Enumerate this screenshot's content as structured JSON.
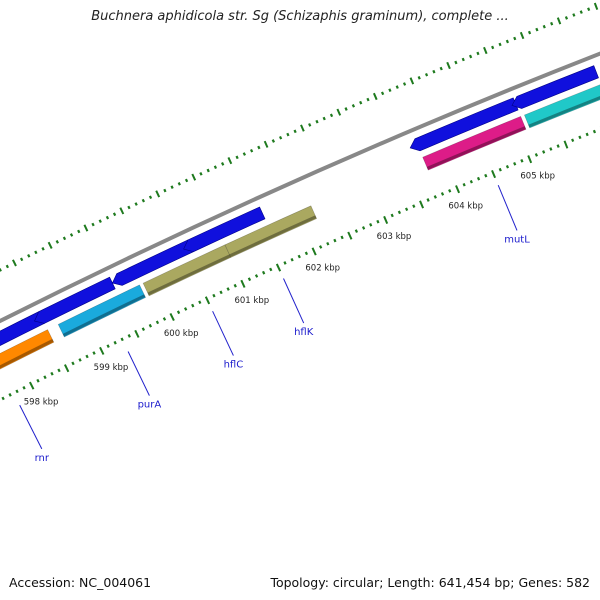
{
  "map": {
    "title": "Buchnera aphidicola str. Sg (Schizaphis graminum), complete ...",
    "accession_label": "Accession:",
    "accession": "NC_004061",
    "topology_label": "Topology:",
    "topology": "circular",
    "length_label": "Length:",
    "length": "641,454 bp",
    "genes_label": "Genes:",
    "genes": "582"
  },
  "colors": {
    "backbone": "#888888",
    "tick": "#1e7a1e",
    "forward_gene": "#1010dd",
    "label_line": "#2222cc"
  },
  "position_labels": [
    {
      "kbp": 598,
      "text": "598 kbp"
    },
    {
      "kbp": 599,
      "text": "599 kbp"
    },
    {
      "kbp": 600,
      "text": "600 kbp"
    },
    {
      "kbp": 601,
      "text": "601 kbp"
    },
    {
      "kbp": 602,
      "text": "602 kbp"
    },
    {
      "kbp": 603,
      "text": "603 kbp"
    },
    {
      "kbp": 604,
      "text": "604 kbp"
    },
    {
      "kbp": 605,
      "text": "605 kbp"
    }
  ],
  "forward_genes": [
    {
      "start": 597.2,
      "end": 598.5
    },
    {
      "start": 598.5,
      "end": 599.5
    },
    {
      "start": 599.6,
      "end": 600.6
    },
    {
      "start": 600.6,
      "end": 601.6
    },
    {
      "start": 603.75,
      "end": 605.1
    },
    {
      "start": 605.15,
      "end": 606.2
    }
  ],
  "reverse_genes": [
    {
      "start": 597.2,
      "end": 598.5,
      "color": "#ff8800"
    },
    {
      "start": 598.65,
      "end": 599.8,
      "color": "#1aaadd"
    },
    {
      "start": 599.85,
      "end": 601.0,
      "color": "#aaa860"
    },
    {
      "start": 601.0,
      "end": 602.2,
      "color": "#aaa860"
    },
    {
      "start": 603.75,
      "end": 605.1,
      "color": "#dd1c88"
    },
    {
      "start": 605.15,
      "end": 606.2,
      "color": "#20c8c8"
    }
  ],
  "gene_labels": [
    {
      "name": "rnr",
      "kbp": 597.75
    },
    {
      "name": "purA",
      "kbp": 599.3
    },
    {
      "name": "hflC",
      "kbp": 600.5
    },
    {
      "name": "hflK",
      "kbp": 601.5
    },
    {
      "name": "mutL",
      "kbp": 604.5
    }
  ]
}
